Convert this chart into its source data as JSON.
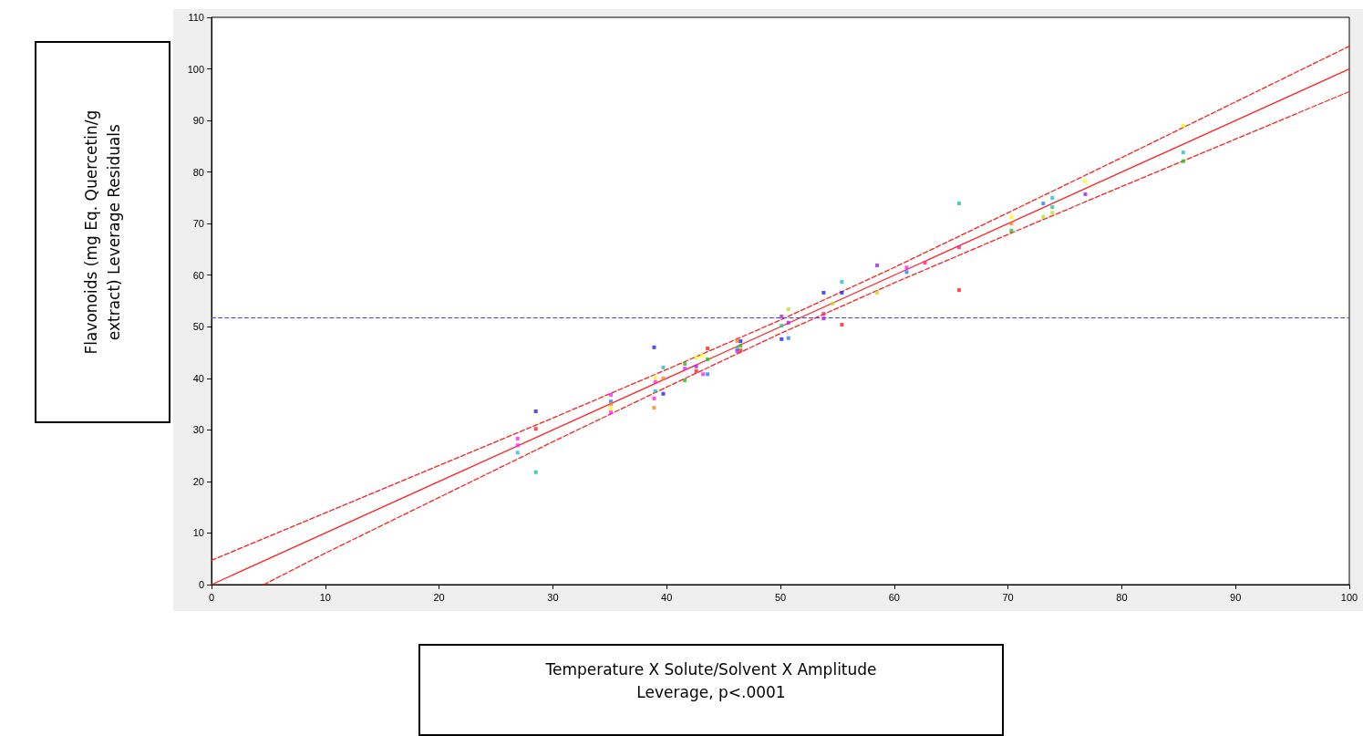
{
  "chart_data": {
    "type": "scatter",
    "xlabel": "Temperature X Solute/Solvent X Amplitude\nLeverage, p<.0001",
    "ylabel": "Flavonoids (mg Eq. Quercetin/g\nextract) Leverage Residuals",
    "xlim": [
      0,
      100
    ],
    "xticks": [
      0,
      10,
      20,
      30,
      40,
      50,
      60,
      70,
      80,
      90,
      100
    ],
    "ylim": [
      0,
      110
    ],
    "yticks": [
      0,
      10,
      20,
      30,
      40,
      50,
      60,
      70,
      80,
      90,
      100,
      110
    ],
    "grid": false,
    "series": [
      {
        "marker": "square",
        "x": [
          28.5,
          28.5,
          28.5,
          26.9,
          26.9,
          26.9,
          35.1,
          35.1,
          35.1,
          35.1,
          35.1,
          38.9,
          39.7,
          39.0,
          39.0,
          39.7,
          39.0,
          39.7,
          38.9,
          38.9,
          41.6,
          41.6,
          41.6,
          42.6,
          43.1,
          43.6,
          42.6,
          42.6,
          43.2,
          43.6,
          43.6,
          46.2,
          46.5,
          46.2,
          46.5,
          46.5,
          46.2,
          58.5,
          55.4,
          53.8,
          55.4,
          58.5,
          54.6,
          50.7,
          53.8,
          50.1,
          53.8,
          50.7,
          55.4,
          50.1,
          50.1,
          50.7,
          65.7,
          65.7,
          65.7,
          61.1,
          61.1,
          62.7,
          70.3,
          70.3,
          70.3,
          73.1,
          73.9,
          73.1,
          73.9,
          73.9,
          76.8,
          76.8,
          85.4,
          85.4,
          85.4
        ],
        "values": [
          33.6,
          30.2,
          21.8,
          28.3,
          27.0,
          25.6,
          36.8,
          35.5,
          35.0,
          34.1,
          33.4,
          46.0,
          42.1,
          40.0,
          39.3,
          40.0,
          37.5,
          37.0,
          36.1,
          34.3,
          42.8,
          41.9,
          39.6,
          44.0,
          44.4,
          43.7,
          42.3,
          41.4,
          40.8,
          40.8,
          45.8,
          47.2,
          47.2,
          45.8,
          46.3,
          45.4,
          45.3,
          61.9,
          58.7,
          56.6,
          56.6,
          56.6,
          54.5,
          53.4,
          52.5,
          52.0,
          51.6,
          50.8,
          50.4,
          50.2,
          47.6,
          47.8,
          73.9,
          57.1,
          65.4,
          61.5,
          60.6,
          62.4,
          71.3,
          70.0,
          68.6,
          71.3,
          72.1,
          73.9,
          75.0,
          73.2,
          78.2,
          75.7,
          83.8,
          82.1,
          89.0
        ],
        "colors": [
          "#2020ff",
          "#ff2020",
          "#20c080",
          "#ff20ff",
          "#ff20ff",
          "#20c0c0",
          "#ff20ff",
          "#2080ff",
          "#ff8020",
          "#ffff00",
          "#ff20ff",
          "#2020ff",
          "#20c0c0",
          "#ffff00",
          "#ff20ff",
          "#ff8020",
          "#20c0a0",
          "#2020ff",
          "#ff20ff",
          "#ff8020",
          "#20c020",
          "#ff20ff",
          "#20c020",
          "#ffff00",
          "#ffff00",
          "#20c020",
          "#a020ff",
          "#ff2020",
          "#ff20ff",
          "#2080ff",
          "#ff2020",
          "#ff8020",
          "#2020ff",
          "#20c0a0",
          "#20c020",
          "#ff2020",
          "#a020ff",
          "#a020ff",
          "#20c0c0",
          "#2020ff",
          "#2020ff",
          "#c0e020",
          "#c0e020",
          "#c0e020",
          "#ff2080",
          "#a020ff",
          "#a020ff",
          "#a020ff",
          "#ff2020",
          "#20c0a0",
          "#2020ff",
          "#2080ff",
          "#20c0a0",
          "#ff2020",
          "#ff2080",
          "#ff20ff",
          "#2080ff",
          "#ff2080",
          "#ffff00",
          "#ff8020",
          "#20c020",
          "#c0e020",
          "#c0e020",
          "#2080ff",
          "#20c0c0",
          "#20c0a0",
          "#ffff00",
          "#a020ff",
          "#20c0c0",
          "#20c020",
          "#ffff00"
        ]
      },
      {
        "type": "line",
        "marker": "none",
        "line_style": "solid",
        "color": "#ff2020",
        "x": [
          0,
          100
        ],
        "values": [
          0,
          100
        ]
      },
      {
        "type": "line",
        "marker": "none",
        "line_style": "dashed",
        "color": "#ff2020",
        "x": [
          0,
          10,
          20,
          30,
          40,
          50,
          60,
          70,
          80,
          90,
          100
        ],
        "values": [
          4.7,
          13.9,
          23.1,
          32.3,
          41.7,
          51.3,
          61.5,
          72.1,
          82.8,
          93.6,
          104.4
        ]
      },
      {
        "type": "line",
        "marker": "none",
        "line_style": "dashed",
        "color": "#ff2020",
        "x": [
          4.6,
          10,
          20,
          30,
          40,
          50,
          60,
          70,
          80,
          90,
          100
        ],
        "values": [
          0,
          6.1,
          16.9,
          27.7,
          38.3,
          48.7,
          58.5,
          67.9,
          77.2,
          86.4,
          95.6
        ]
      }
    ],
    "ref_lines": [
      {
        "axis": "y",
        "value": 51.8,
        "color": "#4040ff",
        "line_style": "dashed"
      }
    ]
  }
}
